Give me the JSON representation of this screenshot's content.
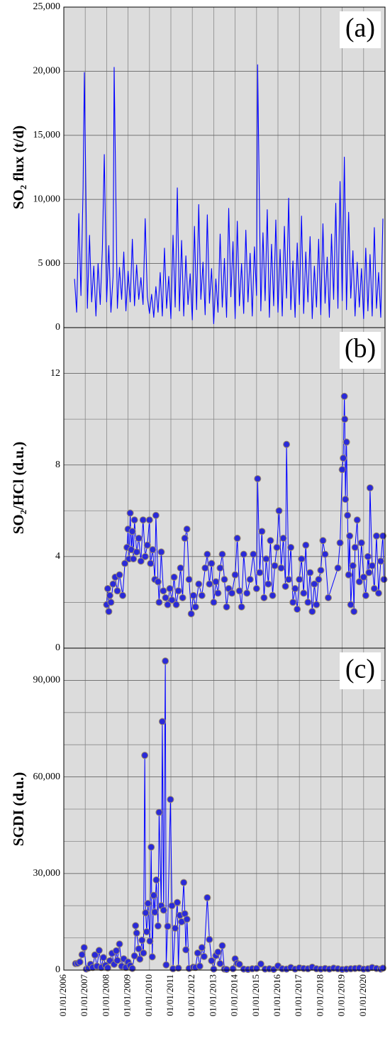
{
  "chart_data": [
    {
      "type": "line",
      "label": "(a)",
      "ylabel": "SO₂ flux (t/d)",
      "color": "#0000ff",
      "xlim": [
        2006,
        2021
      ],
      "ylim": [
        0,
        25000
      ],
      "yticks": [
        0,
        {
          "value": 5000,
          "label": "5 000"
        },
        {
          "value": 10000,
          "label": "10,000"
        },
        {
          "value": 15000,
          "label": "15,000"
        },
        {
          "value": 20000,
          "label": "20,000"
        },
        {
          "value": 25000,
          "label": "25,000"
        }
      ],
      "xgrid": [
        2006,
        2007,
        2008,
        2009,
        2010,
        2011,
        2012,
        2013,
        2014,
        2015,
        2016,
        2017,
        2018,
        2019,
        2020
      ],
      "x": [
        2006.5,
        2006.6,
        2006.7,
        2006.8,
        2006.9,
        2006.96,
        2007.1,
        2007.2,
        2007.3,
        2007.4,
        2007.5,
        2007.6,
        2007.7,
        2007.8,
        2007.89,
        2008.0,
        2008.1,
        2008.2,
        2008.3,
        2008.35,
        2008.5,
        2008.6,
        2008.7,
        2008.8,
        2008.9,
        2009.0,
        2009.1,
        2009.2,
        2009.3,
        2009.4,
        2009.5,
        2009.6,
        2009.7,
        2009.8,
        2009.9,
        2010.0,
        2010.1,
        2010.2,
        2010.3,
        2010.4,
        2010.5,
        2010.6,
        2010.7,
        2010.8,
        2010.9,
        2011.0,
        2011.1,
        2011.2,
        2011.3,
        2011.4,
        2011.5,
        2011.6,
        2011.7,
        2011.8,
        2011.9,
        2012.0,
        2012.1,
        2012.2,
        2012.3,
        2012.4,
        2012.5,
        2012.6,
        2012.7,
        2012.8,
        2012.9,
        2013.0,
        2013.1,
        2013.2,
        2013.3,
        2013.4,
        2013.5,
        2013.6,
        2013.7,
        2013.8,
        2013.9,
        2014.0,
        2014.1,
        2014.2,
        2014.3,
        2014.4,
        2014.5,
        2014.6,
        2014.7,
        2014.8,
        2014.9,
        2015.0,
        2015.05,
        2015.2,
        2015.3,
        2015.4,
        2015.5,
        2015.6,
        2015.7,
        2015.8,
        2015.9,
        2016.0,
        2016.1,
        2016.2,
        2016.3,
        2016.4,
        2016.5,
        2016.6,
        2016.7,
        2016.8,
        2016.9,
        2017.0,
        2017.1,
        2017.2,
        2017.3,
        2017.4,
        2017.5,
        2017.6,
        2017.7,
        2017.8,
        2017.9,
        2018.0,
        2018.1,
        2018.2,
        2018.3,
        2018.4,
        2018.5,
        2018.6,
        2018.7,
        2018.8,
        2018.9,
        2019.0,
        2019.1,
        2019.2,
        2019.3,
        2019.4,
        2019.5,
        2019.6,
        2019.7,
        2019.8,
        2019.9,
        2020.0,
        2020.1,
        2020.2,
        2020.3,
        2020.4,
        2020.5,
        2020.6,
        2020.7,
        2020.8,
        2020.9
      ],
      "values": [
        3800,
        1200,
        8900,
        2500,
        10900,
        19900,
        1500,
        7200,
        2000,
        4800,
        900,
        5000,
        1800,
        6100,
        13500,
        2000,
        6400,
        1200,
        4000,
        20300,
        1500,
        4700,
        2200,
        5900,
        1300,
        4400,
        2000,
        6900,
        1700,
        4900,
        2200,
        3900,
        1800,
        8500,
        2400,
        1100,
        2600,
        800,
        3200,
        1200,
        4300,
        900,
        6200,
        1500,
        4000,
        700,
        7200,
        1600,
        10900,
        1300,
        6800,
        900,
        5600,
        1800,
        4200,
        600,
        7900,
        1400,
        9600,
        2200,
        5100,
        1000,
        8800,
        1900,
        4600,
        300,
        3800,
        1200,
        7300,
        1600,
        5400,
        800,
        9300,
        2400,
        6700,
        700,
        8300,
        1700,
        5000,
        1100,
        7600,
        2000,
        5800,
        900,
        6300,
        2500,
        20500,
        1300,
        7400,
        2100,
        9200,
        800,
        6500,
        1700,
        8400,
        1200,
        6100,
        900,
        7900,
        2300,
        10100,
        1400,
        5200,
        800,
        6600,
        1800,
        8700,
        1100,
        5900,
        2000,
        7100,
        700,
        4800,
        1600,
        6900,
        1000,
        8100,
        1900,
        5500,
        800,
        7300,
        2200,
        9700,
        1500,
        11400,
        2100,
        13300,
        1400,
        9000,
        2300,
        6000,
        900,
        5100,
        1600,
        4600,
        700,
        6200,
        1300,
        5700,
        900,
        7800,
        1500,
        4300,
        800,
        8500
      ]
    },
    {
      "type": "line",
      "markers": true,
      "label": "(b)",
      "ylabel": "SO₂/HCl (d.u.)",
      "color": "#0000ff",
      "xlim": [
        2006,
        2021
      ],
      "ylim": [
        0,
        14
      ],
      "yticks": [
        0,
        4,
        8,
        12
      ],
      "ygrid": [
        2,
        6,
        10
      ],
      "xgrid": [
        2006,
        2007,
        2008,
        2009,
        2010,
        2011,
        2012,
        2013,
        2014,
        2015,
        2016,
        2017,
        2018,
        2019,
        2020
      ],
      "x": [
        2008.0,
        2008.05,
        2008.1,
        2008.15,
        2008.2,
        2008.3,
        2008.4,
        2008.5,
        2008.6,
        2008.75,
        2008.85,
        2008.95,
        2009.0,
        2009.05,
        2009.1,
        2009.15,
        2009.2,
        2009.25,
        2009.3,
        2009.4,
        2009.5,
        2009.6,
        2009.7,
        2009.8,
        2009.9,
        2010.0,
        2010.05,
        2010.15,
        2010.25,
        2010.3,
        2010.4,
        2010.45,
        2010.55,
        2010.65,
        2010.75,
        2010.85,
        2010.95,
        2011.05,
        2011.15,
        2011.25,
        2011.35,
        2011.45,
        2011.55,
        2011.65,
        2011.75,
        2011.85,
        2011.95,
        2012.05,
        2012.15,
        2012.3,
        2012.45,
        2012.6,
        2012.7,
        2012.8,
        2012.9,
        2013.0,
        2013.1,
        2013.2,
        2013.3,
        2013.4,
        2013.5,
        2013.6,
        2013.7,
        2013.85,
        2014.0,
        2014.1,
        2014.2,
        2014.3,
        2014.4,
        2014.55,
        2014.7,
        2014.85,
        2015.0,
        2015.05,
        2015.15,
        2015.25,
        2015.35,
        2015.45,
        2015.55,
        2015.65,
        2015.75,
        2015.85,
        2015.95,
        2016.05,
        2016.15,
        2016.25,
        2016.35,
        2016.4,
        2016.5,
        2016.6,
        2016.7,
        2016.8,
        2016.9,
        2017.0,
        2017.1,
        2017.2,
        2017.3,
        2017.4,
        2017.5,
        2017.6,
        2017.7,
        2017.8,
        2017.9,
        2018.0,
        2018.1,
        2018.2,
        2018.35,
        2018.8,
        2018.9,
        2019.0,
        2019.05,
        2019.1,
        2019.12,
        2019.15,
        2019.2,
        2019.25,
        2019.3,
        2019.35,
        2019.4,
        2019.5,
        2019.55,
        2019.6,
        2019.7,
        2019.8,
        2019.9,
        2020.0,
        2020.1,
        2020.2,
        2020.25,
        2020.3,
        2020.4,
        2020.5,
        2020.6,
        2020.7,
        2020.8,
        2020.9,
        2020.95
      ],
      "values": [
        1.9,
        2.6,
        1.6,
        2.3,
        2.0,
        2.8,
        3.1,
        2.5,
        3.2,
        2.3,
        3.7,
        4.4,
        5.2,
        3.9,
        5.9,
        4.3,
        5.1,
        3.9,
        5.6,
        4.2,
        4.8,
        3.8,
        5.6,
        4.0,
        4.5,
        5.6,
        3.7,
        4.3,
        3.0,
        5.8,
        2.9,
        2.0,
        4.2,
        2.5,
        2.2,
        1.9,
        2.6,
        2.1,
        3.1,
        1.9,
        2.5,
        3.5,
        2.2,
        4.8,
        5.2,
        3.0,
        1.5,
        2.3,
        1.8,
        2.8,
        2.3,
        3.5,
        4.1,
        2.8,
        3.7,
        2.0,
        2.9,
        2.4,
        3.5,
        4.1,
        3.0,
        1.8,
        2.6,
        2.4,
        3.2,
        4.8,
        2.5,
        1.8,
        4.1,
        2.4,
        3.0,
        4.1,
        2.6,
        7.4,
        3.3,
        5.1,
        2.2,
        3.9,
        2.8,
        4.7,
        2.3,
        3.6,
        4.4,
        6.0,
        3.5,
        4.8,
        2.7,
        8.9,
        3.0,
        4.4,
        2.0,
        2.6,
        1.7,
        3.0,
        3.9,
        2.4,
        4.5,
        2.0,
        3.3,
        1.6,
        2.8,
        1.9,
        3.0,
        3.4,
        4.7,
        4.1,
        2.2,
        3.5,
        4.6,
        7.8,
        8.3,
        11.0,
        10.0,
        6.5,
        9.0,
        5.8,
        3.2,
        4.9,
        1.9,
        3.6,
        1.6,
        4.4,
        5.6,
        2.9,
        4.6,
        3.1,
        2.3,
        4.0,
        3.3,
        7.0,
        3.6,
        2.6,
        4.9,
        2.4,
        3.8,
        4.9,
        3.0
      ]
    },
    {
      "type": "line",
      "markers": true,
      "label": "(c)",
      "ylabel": "SGDI (d.u.)",
      "color": "#0000ff",
      "xlim": [
        2006,
        2021
      ],
      "ylim": [
        0,
        100000
      ],
      "yticks": [
        0,
        {
          "value": 30000,
          "label": "30,000"
        },
        {
          "value": 60000,
          "label": "60,000"
        },
        {
          "value": 90000,
          "label": "90,000"
        }
      ],
      "ygrid": [
        10000,
        20000,
        40000,
        50000,
        70000,
        80000
      ],
      "xticks": [
        {
          "value": 2006,
          "label": "01/01/2006"
        },
        {
          "value": 2007,
          "label": "01/01/2007"
        },
        {
          "value": 2008,
          "label": "01/01/2008"
        },
        {
          "value": 2009,
          "label": "01/01/2009"
        },
        {
          "value": 2010,
          "label": "01/01/2010"
        },
        {
          "value": 2011,
          "label": "01/01/2011"
        },
        {
          "value": 2012,
          "label": "01/01/2012"
        },
        {
          "value": 2013,
          "label": "01/01/2013"
        },
        {
          "value": 2014,
          "label": "01/01/2014"
        },
        {
          "value": 2015,
          "label": "01/01/2015"
        },
        {
          "value": 2016,
          "label": "01/01/2016"
        },
        {
          "value": 2017,
          "label": "01/01/2017"
        },
        {
          "value": 2018,
          "label": "01/01/2018"
        },
        {
          "value": 2019,
          "label": "01/01/2019"
        },
        {
          "value": 2020,
          "label": "01/01/2020"
        }
      ],
      "x": [
        2006.55,
        2006.65,
        2006.75,
        2006.85,
        2006.95,
        2007.05,
        2007.15,
        2007.25,
        2007.35,
        2007.45,
        2007.55,
        2007.65,
        2007.75,
        2007.85,
        2007.95,
        2008.05,
        2008.15,
        2008.25,
        2008.35,
        2008.45,
        2008.5,
        2008.6,
        2008.7,
        2008.8,
        2008.9,
        2009.0,
        2009.1,
        2009.2,
        2009.3,
        2009.35,
        2009.4,
        2009.5,
        2009.55,
        2009.65,
        2009.72,
        2009.78,
        2009.82,
        2009.87,
        2009.93,
        2010.02,
        2010.08,
        2010.13,
        2010.2,
        2010.25,
        2010.32,
        2010.4,
        2010.45,
        2010.55,
        2010.6,
        2010.66,
        2010.74,
        2010.78,
        2010.85,
        2010.98,
        2011.05,
        2011.1,
        2011.2,
        2011.3,
        2011.35,
        2011.42,
        2011.5,
        2011.6,
        2011.65,
        2011.7,
        2011.75,
        2011.85,
        2012.05,
        2012.15,
        2012.25,
        2012.35,
        2012.45,
        2012.55,
        2012.7,
        2012.8,
        2012.9,
        2013.0,
        2013.1,
        2013.2,
        2013.3,
        2013.4,
        2013.5,
        2013.6,
        2013.9,
        2014.0,
        2014.1,
        2014.2,
        2014.4,
        2014.6,
        2014.8,
        2015.0,
        2015.2,
        2015.4,
        2015.6,
        2015.8,
        2016.0,
        2016.2,
        2016.4,
        2016.6,
        2016.8,
        2017.0,
        2017.2,
        2017.4,
        2017.6,
        2017.8,
        2018.0,
        2018.2,
        2018.4,
        2018.6,
        2018.8,
        2019.0,
        2019.2,
        2019.4,
        2019.6,
        2019.8,
        2020.0,
        2020.2,
        2020.4,
        2020.6,
        2020.8,
        2020.9
      ],
      "values": [
        2000,
        2100,
        2500,
        4800,
        7000,
        300,
        600,
        1800,
        800,
        4700,
        1200,
        6100,
        800,
        3900,
        1500,
        700,
        2900,
        5200,
        1800,
        6000,
        3000,
        8100,
        1200,
        3500,
        800,
        2500,
        1400,
        500,
        4400,
        13800,
        11500,
        6600,
        3400,
        9300,
        5300,
        66700,
        17800,
        11900,
        20700,
        9000,
        38200,
        4100,
        23200,
        18000,
        28000,
        13700,
        49000,
        20000,
        77200,
        18600,
        96000,
        1600,
        13600,
        53000,
        20000,
        400,
        13000,
        21000,
        600,
        17000,
        15000,
        27200,
        17500,
        6300,
        15800,
        500,
        900,
        800,
        5300,
        1200,
        7000,
        4200,
        22500,
        9500,
        2900,
        300,
        4500,
        5600,
        2000,
        7600,
        300,
        200,
        400,
        3500,
        2100,
        1800,
        300,
        200,
        400,
        500,
        1900,
        300,
        400,
        200,
        1300,
        400,
        300,
        800,
        300,
        700,
        500,
        400,
        900,
        400,
        300,
        500,
        300,
        600,
        400,
        200,
        300,
        400,
        500,
        600,
        300,
        400,
        800,
        500,
        300,
        600
      ]
    }
  ]
}
